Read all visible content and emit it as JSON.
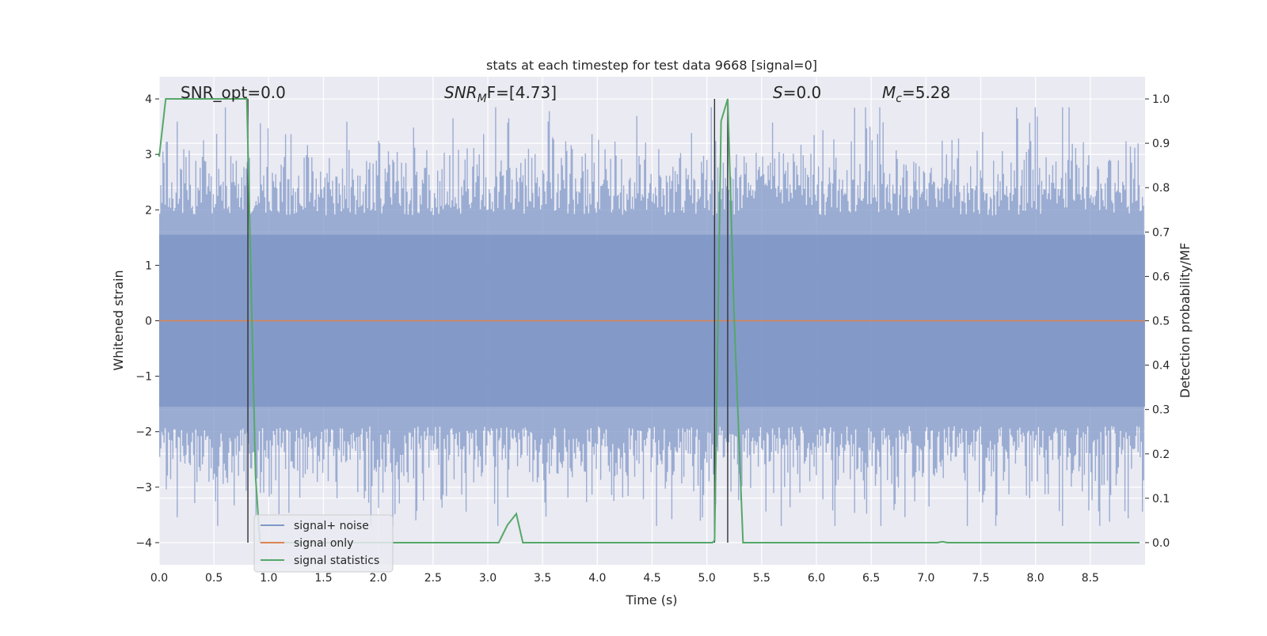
{
  "chart_data": {
    "type": "line",
    "title": "stats at each timestep for test data 9668 [signal=0]",
    "xlabel": "Time (s)",
    "ylabel": "Whitened strain",
    "ylabel_right": "Detection probability/MF",
    "xlim": [
      0.0,
      9.0
    ],
    "ylim": [
      -4.4,
      4.4
    ],
    "ylim_right": [
      -0.05,
      1.05
    ],
    "x_ticks": [
      "0.0",
      "0.5",
      "1.0",
      "1.5",
      "2.0",
      "2.5",
      "3.0",
      "3.5",
      "4.0",
      "4.5",
      "5.0",
      "5.5",
      "6.0",
      "6.5",
      "7.0",
      "7.5",
      "8.0",
      "8.5"
    ],
    "y_ticks": [
      "4",
      "3",
      "2",
      "1",
      "0",
      "−1",
      "−2",
      "−3",
      "−4"
    ],
    "y_ticks_right": [
      "1.0",
      "0.9",
      "0.8",
      "0.7",
      "0.6",
      "0.5",
      "0.4",
      "0.3",
      "0.2",
      "0.1",
      "0.0"
    ],
    "grid": true,
    "legend_placement": "lower-left",
    "annotations": {
      "snr_opt": "SNR_opt=0.0",
      "snr_mf_main": "SNR",
      "snr_mf_sub": "M",
      "snr_mf_tail": "F=[4.73]",
      "s_main": "S",
      "s_tail": "=0.0",
      "mc_main": "M",
      "mc_sub": "c",
      "mc_tail": "=5.28"
    },
    "series": [
      {
        "name": "signal+ noise",
        "color": "#7f97c7",
        "description_values": "whitened strain noise, approximately within [-3.6, 3.8]"
      },
      {
        "name": "signal only",
        "color": "#dd8452",
        "x": [
          0.0,
          9.0
        ],
        "y": [
          0.0,
          0.0
        ]
      },
      {
        "name": "signal statistics",
        "color": "#55a868",
        "x": [
          0.0,
          0.06,
          0.1,
          0.2,
          0.5,
          0.78,
          0.8,
          0.88,
          0.92,
          1.0,
          1.2,
          3.1,
          3.18,
          3.26,
          3.32,
          3.5,
          5.05,
          5.07,
          5.13,
          5.19,
          5.25,
          5.33,
          7.1,
          7.15,
          7.2,
          8.95
        ],
        "y": [
          0.87,
          1.0,
          1.0,
          1.0,
          1.0,
          1.0,
          1.0,
          0.15,
          0.0,
          0.0,
          0.0,
          0.0,
          0.04,
          0.065,
          0.0,
          0.0,
          0.0,
          0.005,
          0.95,
          1.0,
          0.5,
          0.0,
          0.0,
          0.002,
          0.0,
          0.0
        ]
      }
    ],
    "vertical_markers_s": [
      0.81,
      5.07,
      5.19
    ],
    "noise_seed": 9668,
    "noise_bins": 900
  }
}
